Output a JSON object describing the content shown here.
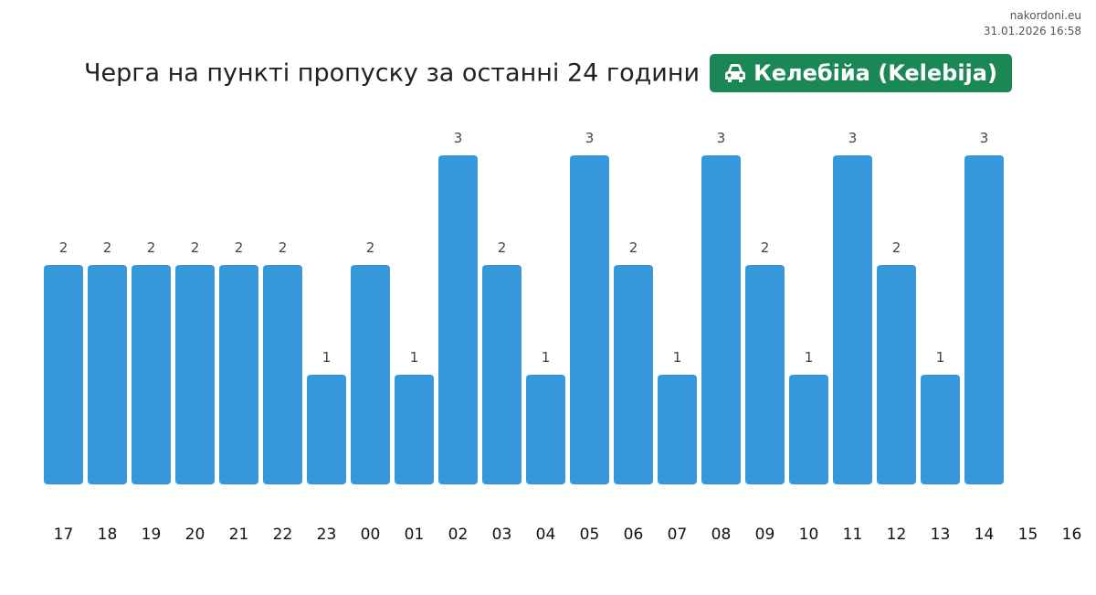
{
  "site": "nakordoni.eu",
  "timestamp": "31.01.2026 16:58",
  "title": "Черга на пункті пропуску за останні 24 години",
  "badge": {
    "icon": "car-icon",
    "label": "Келебійа (Kelebija)",
    "color": "#1a8754"
  },
  "chart_data": {
    "type": "bar",
    "categories": [
      "17",
      "18",
      "19",
      "20",
      "21",
      "22",
      "23",
      "00",
      "01",
      "02",
      "03",
      "04",
      "05",
      "06",
      "07",
      "08",
      "09",
      "10",
      "11",
      "12",
      "13",
      "14",
      "15",
      "16"
    ],
    "values": [
      2,
      2,
      2,
      2,
      2,
      2,
      1,
      2,
      1,
      3,
      2,
      1,
      3,
      2,
      1,
      3,
      2,
      1,
      3,
      2,
      1,
      3,
      null,
      null
    ],
    "bar_color": "#3498db",
    "ylim": [
      0,
      3
    ],
    "grid": false
  }
}
